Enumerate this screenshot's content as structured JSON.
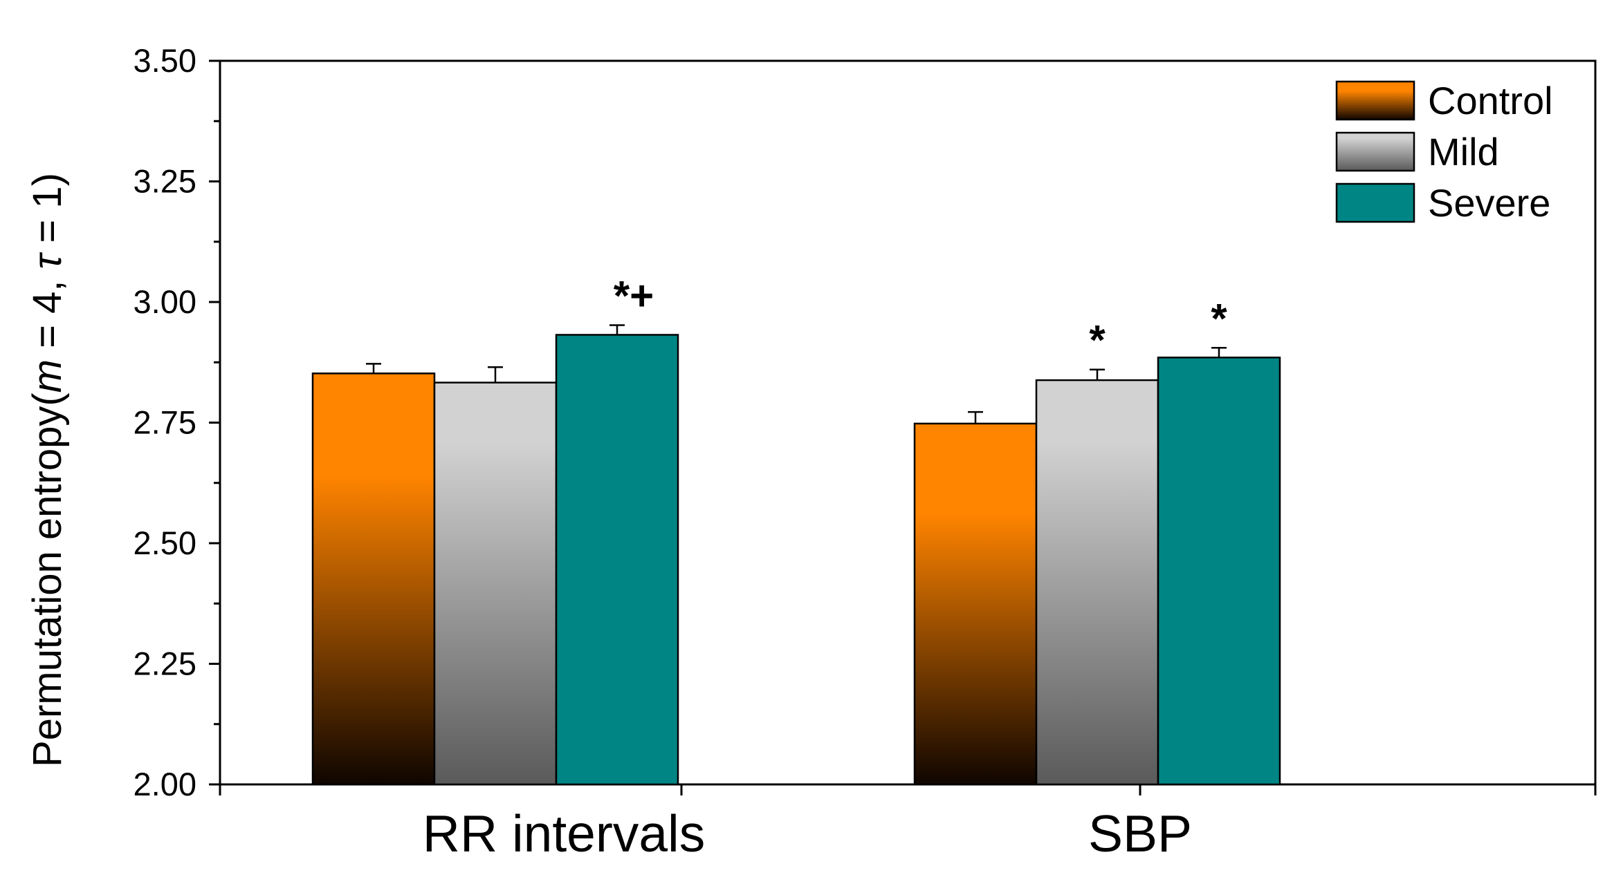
{
  "chart_data": {
    "type": "bar",
    "title": "",
    "xlabel": "",
    "ylabel": {
      "prefix": "Permutation entropy(",
      "m_symbol": "m",
      "m_value": " = 4, ",
      "tau_symbol": "τ",
      "tau_value": " = 1)"
    },
    "ylim": [
      2.0,
      3.5
    ],
    "yticks": [
      "2.00",
      "2.25",
      "2.50",
      "2.75",
      "3.00",
      "3.25",
      "3.50"
    ],
    "categories": [
      "RR intervals",
      "SBP"
    ],
    "series": [
      {
        "name": "Control",
        "values": [
          2.852,
          2.748
        ],
        "errors": [
          0.02,
          0.024
        ],
        "annotations": [
          "",
          ""
        ]
      },
      {
        "name": "Mild",
        "values": [
          2.833,
          2.838
        ],
        "errors": [
          0.032,
          0.022
        ],
        "annotations": [
          "",
          "*"
        ]
      },
      {
        "name": "Severe",
        "values": [
          2.932,
          2.885
        ],
        "errors": [
          0.02,
          0.02
        ],
        "annotations": [
          "*+",
          "*"
        ]
      }
    ],
    "colors": {
      "control_top": "#ff8400",
      "control_bottom": "#0f0500",
      "mild_top": "#d2d2d2",
      "mild_bottom": "#5a5a5a",
      "severe": "#008585"
    },
    "legend": {
      "position": "top-right",
      "entries": [
        "Control",
        "Mild",
        "Severe"
      ]
    },
    "grid": false
  }
}
